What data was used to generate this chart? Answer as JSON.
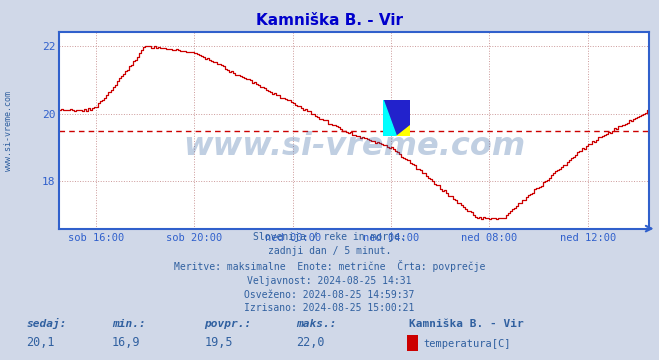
{
  "title": "Kamniška B. - Vir",
  "title_color": "#0000cc",
  "bg_color": "#d0d8e8",
  "plot_bg_color": "#ffffff",
  "line_color": "#cc0000",
  "avg_line_color": "#cc0000",
  "avg_value": 19.5,
  "yticks": [
    18,
    20,
    22
  ],
  "ylim_min": 16.6,
  "ylim_max": 22.4,
  "watermark": "www.si-vreme.com",
  "watermark_color": "#3060a0",
  "watermark_alpha": 0.3,
  "x_labels": [
    "sob 16:00",
    "sob 20:00",
    "ned 00:00",
    "ned 04:00",
    "ned 08:00",
    "ned 12:00"
  ],
  "x_tick_hours": [
    1.5,
    5.5,
    9.5,
    13.5,
    17.5,
    21.5
  ],
  "footer_lines": [
    "Slovenija / reke in morje.",
    "zadnji dan / 5 minut.",
    "Meritve: maksimalne  Enote: metrične  Črta: povprečje",
    "Veljavnost: 2024-08-25 14:31",
    "Osveženo: 2024-08-25 14:59:37",
    "Izrisano: 2024-08-25 15:00:21"
  ],
  "footer_color": "#3060a0",
  "bottom_labels": [
    "sedaj:",
    "min.:",
    "povpr.:",
    "maks.:"
  ],
  "bottom_values": [
    "20,1",
    "16,9",
    "19,5",
    "22,0"
  ],
  "bottom_color": "#3060a0",
  "station_name": "Kamniška B. - Vir",
  "legend_label": "temperatura[C]",
  "legend_color": "#cc0000",
  "axis_color": "#3060cc",
  "grid_color": "#cc9999",
  "left_label": "www.si-vreme.com",
  "left_label_color": "#3060a0",
  "total_hours": 24
}
